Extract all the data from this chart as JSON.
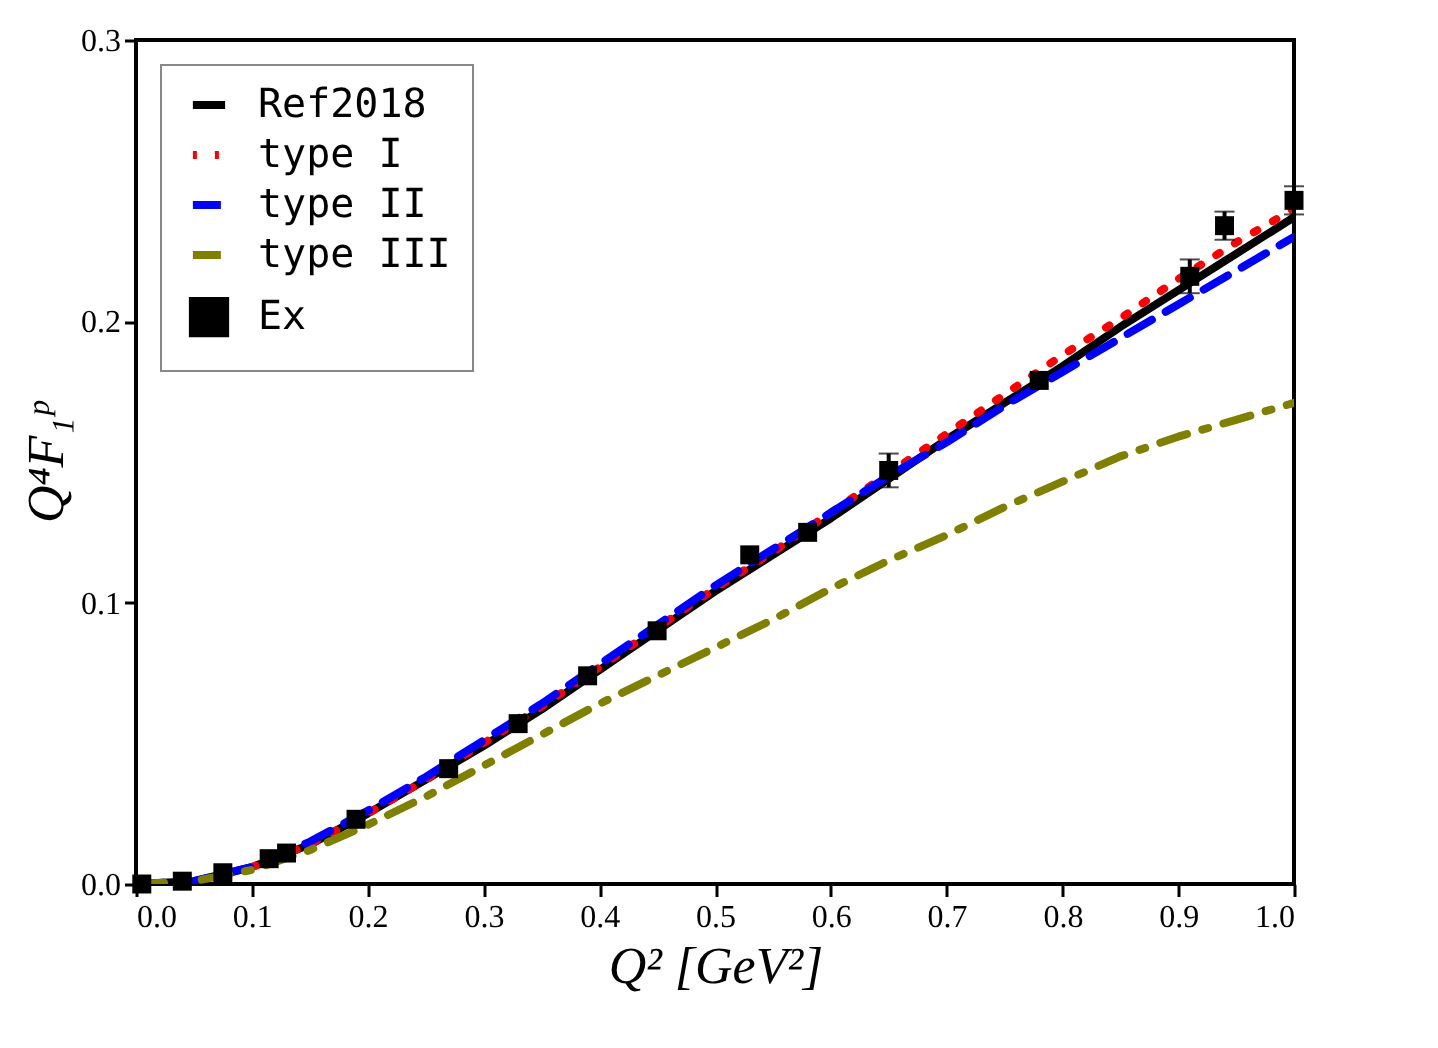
{
  "chart_data": {
    "type": "line",
    "xlabel": "Q² [GeV²]",
    "ylabel": "Q⁴F₁ᵖ",
    "xlim": [
      0,
      1
    ],
    "ylim": [
      0,
      0.3
    ],
    "xticks": [
      {
        "value": 0,
        "label": "0.0"
      },
      0.1,
      0.2,
      0.3,
      0.4,
      0.5,
      0.6,
      0.7,
      0.8,
      0.9,
      {
        "value": 1,
        "label": "1.0"
      }
    ],
    "yticks": [
      {
        "value": 0,
        "label": "0.0"
      },
      0.1,
      0.2,
      0.3
    ],
    "x": [
      0,
      0.05,
      0.1,
      0.15,
      0.2,
      0.25,
      0.3,
      0.35,
      0.4,
      0.45,
      0.5,
      0.55,
      0.6,
      0.65,
      0.7,
      0.75,
      0.8,
      0.85,
      0.9,
      0.95,
      1.0
    ],
    "legend": "top left",
    "grid": false,
    "series": [
      {
        "name": "Ref2018",
        "color": "#000000",
        "line_style": "solid",
        "values": [
          0,
          0.001,
          0.006,
          0.014,
          0.025,
          0.037,
          0.049,
          0.062,
          0.076,
          0.09,
          0.104,
          0.117,
          0.13,
          0.144,
          0.158,
          0.171,
          0.184,
          0.198,
          0.211,
          0.224,
          0.237
        ]
      },
      {
        "name": "type I",
        "color": "#ff0000",
        "line_style": "dotted",
        "values": [
          null,
          null,
          0.006,
          0.014,
          0.025,
          0.037,
          0.05,
          0.063,
          0.077,
          0.091,
          0.105,
          0.118,
          0.132,
          0.146,
          0.16,
          0.174,
          0.188,
          0.201,
          0.215,
          0.228,
          0.24
        ]
      },
      {
        "name": "type II",
        "color": "#0000ff",
        "line_style": "dashed",
        "values": [
          0,
          0.001,
          0.006,
          0.015,
          0.026,
          0.038,
          0.051,
          0.064,
          0.078,
          0.092,
          0.106,
          0.119,
          0.132,
          0.145,
          0.157,
          0.17,
          0.182,
          0.194,
          0.206,
          0.218,
          0.23
        ]
      },
      {
        "name": "type III",
        "color": "#808000",
        "line_style": "dashdot",
        "values": [
          0,
          0.001,
          0.005,
          0.012,
          0.021,
          0.031,
          0.042,
          0.053,
          0.064,
          0.074,
          0.084,
          0.094,
          0.105,
          0.115,
          0.124,
          0.134,
          0.143,
          0.152,
          0.159,
          0.165,
          0.171
        ]
      },
      {
        "name": "Ex",
        "type": "scatter",
        "marker": "square",
        "color": "#000000",
        "x": [
          0.005,
          0.04,
          0.075,
          0.115,
          0.13,
          0.19,
          0.27,
          0.33,
          0.39,
          0.45,
          0.53,
          0.58,
          0.65,
          0.78,
          0.91,
          0.94,
          1.0
        ],
        "values": [
          0,
          0.001,
          0.004,
          0.009,
          0.011,
          0.023,
          0.041,
          0.057,
          0.074,
          0.09,
          0.117,
          0.125,
          0.147,
          0.179,
          0.216,
          0.234,
          0.243
        ],
        "errors": [
          null,
          null,
          null,
          null,
          null,
          null,
          null,
          null,
          null,
          null,
          null,
          null,
          0.006,
          null,
          0.006,
          0.005,
          0.005
        ]
      }
    ]
  }
}
